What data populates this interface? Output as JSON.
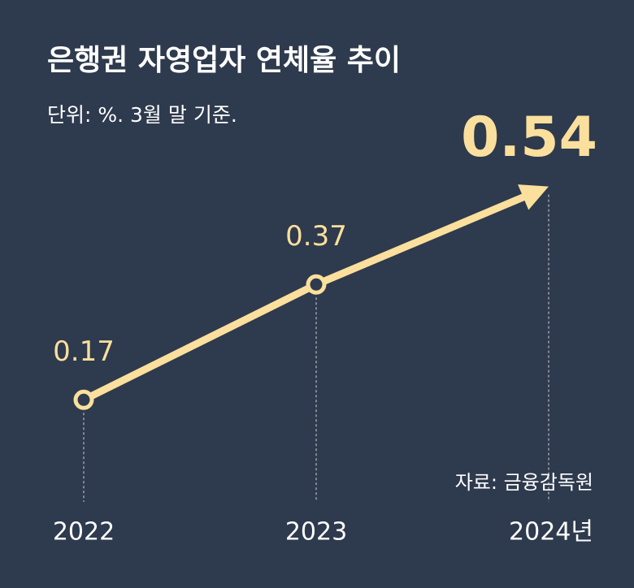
{
  "chart_data": {
    "type": "line",
    "title": "은행권 자영업자 연체율 추이",
    "subtitle": "단위: %. 3월 말 기준.",
    "source": "자료: 금융감독원",
    "categories": [
      "2022",
      "2023",
      "2024년"
    ],
    "values": [
      0.17,
      0.37,
      0.54
    ],
    "color": "#fbdf9c"
  }
}
